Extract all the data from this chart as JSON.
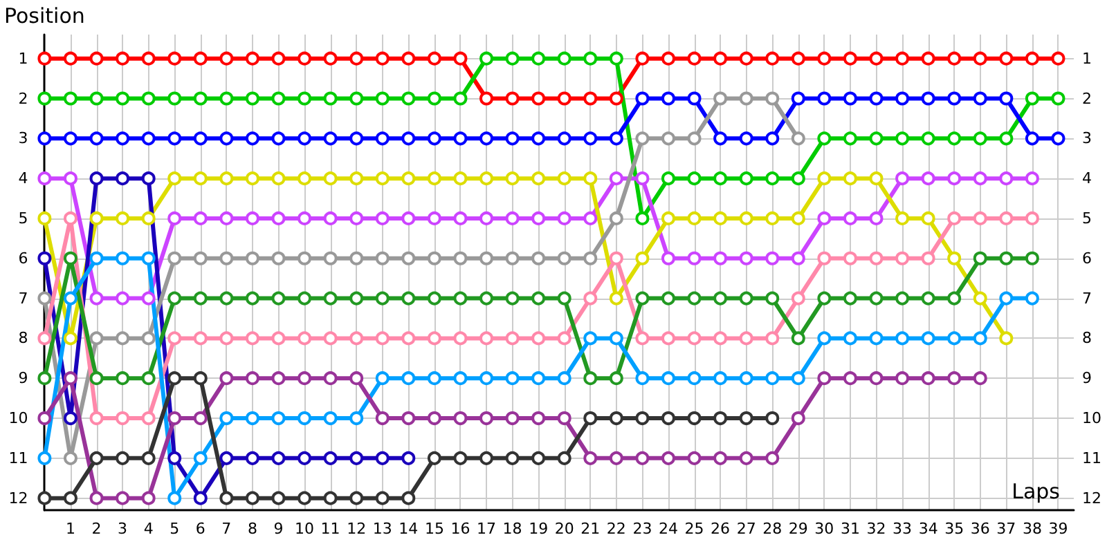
{
  "chart_data": {
    "type": "line",
    "xlabel": "Laps",
    "ylabel": "Position",
    "x": [
      0,
      1,
      2,
      3,
      4,
      5,
      6,
      7,
      8,
      9,
      10,
      11,
      12,
      13,
      14,
      15,
      16,
      17,
      18,
      19,
      20,
      21,
      22,
      23,
      24,
      25,
      26,
      27,
      28,
      29,
      30,
      31,
      32,
      33,
      34,
      35,
      36,
      37,
      38,
      39
    ],
    "xlim": [
      0,
      39.6
    ],
    "xticks": [
      1,
      2,
      3,
      4,
      5,
      6,
      7,
      8,
      9,
      10,
      11,
      12,
      13,
      14,
      15,
      16,
      17,
      18,
      19,
      20,
      21,
      22,
      23,
      24,
      25,
      26,
      27,
      28,
      29,
      30,
      31,
      32,
      33,
      34,
      35,
      36,
      37,
      38,
      39
    ],
    "ylim": [
      12.3,
      0.4
    ],
    "yticks": [
      1,
      2,
      3,
      4,
      5,
      6,
      7,
      8,
      9,
      10,
      11,
      12
    ],
    "y2lim": [
      12.3,
      0.4
    ],
    "y2ticks": [
      1,
      2,
      3,
      4,
      5,
      6,
      7,
      8,
      9,
      10,
      11,
      12
    ],
    "grid": true,
    "marker": "circle",
    "line_style": "solid",
    "series": [
      {
        "color": "#ff0000",
        "values": [
          1,
          1,
          1,
          1,
          1,
          1,
          1,
          1,
          1,
          1,
          1,
          1,
          1,
          1,
          1,
          1,
          1,
          2,
          2,
          2,
          2,
          2,
          2,
          1,
          1,
          1,
          1,
          1,
          1,
          1,
          1,
          1,
          1,
          1,
          1,
          1,
          1,
          1,
          1,
          1
        ]
      },
      {
        "color": "#00cc00",
        "values": [
          2,
          2,
          2,
          2,
          2,
          2,
          2,
          2,
          2,
          2,
          2,
          2,
          2,
          2,
          2,
          2,
          2,
          1,
          1,
          1,
          1,
          1,
          1,
          5,
          4,
          4,
          4,
          4,
          4,
          4,
          3,
          3,
          3,
          3,
          3,
          3,
          3,
          3,
          2,
          2
        ]
      },
      {
        "color": "#0000ff",
        "values": [
          3,
          3,
          3,
          3,
          3,
          3,
          3,
          3,
          3,
          3,
          3,
          3,
          3,
          3,
          3,
          3,
          3,
          3,
          3,
          3,
          3,
          3,
          3,
          2,
          2,
          2,
          3,
          3,
          3,
          2,
          2,
          2,
          2,
          2,
          2,
          2,
          2,
          2,
          3,
          3
        ]
      },
      {
        "color": "#cc44ff",
        "values": [
          4,
          4,
          7,
          7,
          7,
          5,
          5,
          5,
          5,
          5,
          5,
          5,
          5,
          5,
          5,
          5,
          5,
          5,
          5,
          5,
          5,
          5,
          4,
          4,
          6,
          6,
          6,
          6,
          6,
          6,
          5,
          5,
          5,
          4,
          4,
          4,
          4,
          4,
          4,
          null
        ]
      },
      {
        "color": "#dddd00",
        "values": [
          5,
          8,
          5,
          5,
          5,
          4,
          4,
          4,
          4,
          4,
          4,
          4,
          4,
          4,
          4,
          4,
          4,
          4,
          4,
          4,
          4,
          4,
          7,
          6,
          5,
          5,
          5,
          5,
          5,
          5,
          4,
          4,
          4,
          5,
          5,
          6,
          7,
          8,
          null,
          null
        ]
      },
      {
        "color": "#1a00bb",
        "values": [
          6,
          10,
          4,
          4,
          4,
          11,
          12,
          11,
          11,
          11,
          11,
          11,
          11,
          11,
          11,
          null,
          null,
          null,
          null,
          null,
          null,
          null,
          null,
          null,
          null,
          null,
          null,
          null,
          null,
          null,
          null,
          null,
          null,
          null,
          null,
          null,
          null,
          null,
          null,
          null
        ]
      },
      {
        "color": "#999999",
        "values": [
          7,
          11,
          8,
          8,
          8,
          6,
          6,
          6,
          6,
          6,
          6,
          6,
          6,
          6,
          6,
          6,
          6,
          6,
          6,
          6,
          6,
          6,
          5,
          3,
          3,
          3,
          2,
          2,
          2,
          3,
          null,
          null,
          null,
          null,
          null,
          null,
          null,
          null,
          null,
          null
        ]
      },
      {
        "color": "#ff88aa",
        "values": [
          8,
          5,
          10,
          10,
          10,
          8,
          8,
          8,
          8,
          8,
          8,
          8,
          8,
          8,
          8,
          8,
          8,
          8,
          8,
          8,
          8,
          7,
          6,
          8,
          8,
          8,
          8,
          8,
          8,
          7,
          6,
          6,
          6,
          6,
          6,
          5,
          5,
          5,
          5,
          null
        ]
      },
      {
        "color": "#229922",
        "values": [
          9,
          6,
          9,
          9,
          9,
          7,
          7,
          7,
          7,
          7,
          7,
          7,
          7,
          7,
          7,
          7,
          7,
          7,
          7,
          7,
          7,
          9,
          9,
          7,
          7,
          7,
          7,
          7,
          7,
          8,
          7,
          7,
          7,
          7,
          7,
          7,
          6,
          6,
          6,
          null
        ]
      },
      {
        "color": "#00a0ff",
        "values": [
          11,
          7,
          6,
          6,
          6,
          12,
          11,
          10,
          10,
          10,
          10,
          10,
          10,
          9,
          9,
          9,
          9,
          9,
          9,
          9,
          9,
          8,
          8,
          9,
          9,
          9,
          9,
          9,
          9,
          9,
          8,
          8,
          8,
          8,
          8,
          8,
          8,
          7,
          7,
          null
        ]
      },
      {
        "color": "#993399",
        "values": [
          10,
          9,
          12,
          12,
          12,
          10,
          10,
          9,
          9,
          9,
          9,
          9,
          9,
          10,
          10,
          10,
          10,
          10,
          10,
          10,
          10,
          11,
          11,
          11,
          11,
          11,
          11,
          11,
          11,
          10,
          9,
          9,
          9,
          9,
          9,
          9,
          9,
          null,
          null,
          null
        ]
      },
      {
        "color": "#333333",
        "values": [
          12,
          12,
          11,
          11,
          11,
          9,
          9,
          12,
          12,
          12,
          12,
          12,
          12,
          12,
          12,
          11,
          11,
          11,
          11,
          11,
          11,
          10,
          10,
          10,
          10,
          10,
          10,
          10,
          10,
          null,
          null,
          null,
          null,
          null,
          null,
          null,
          null,
          null,
          null,
          null
        ]
      }
    ]
  }
}
